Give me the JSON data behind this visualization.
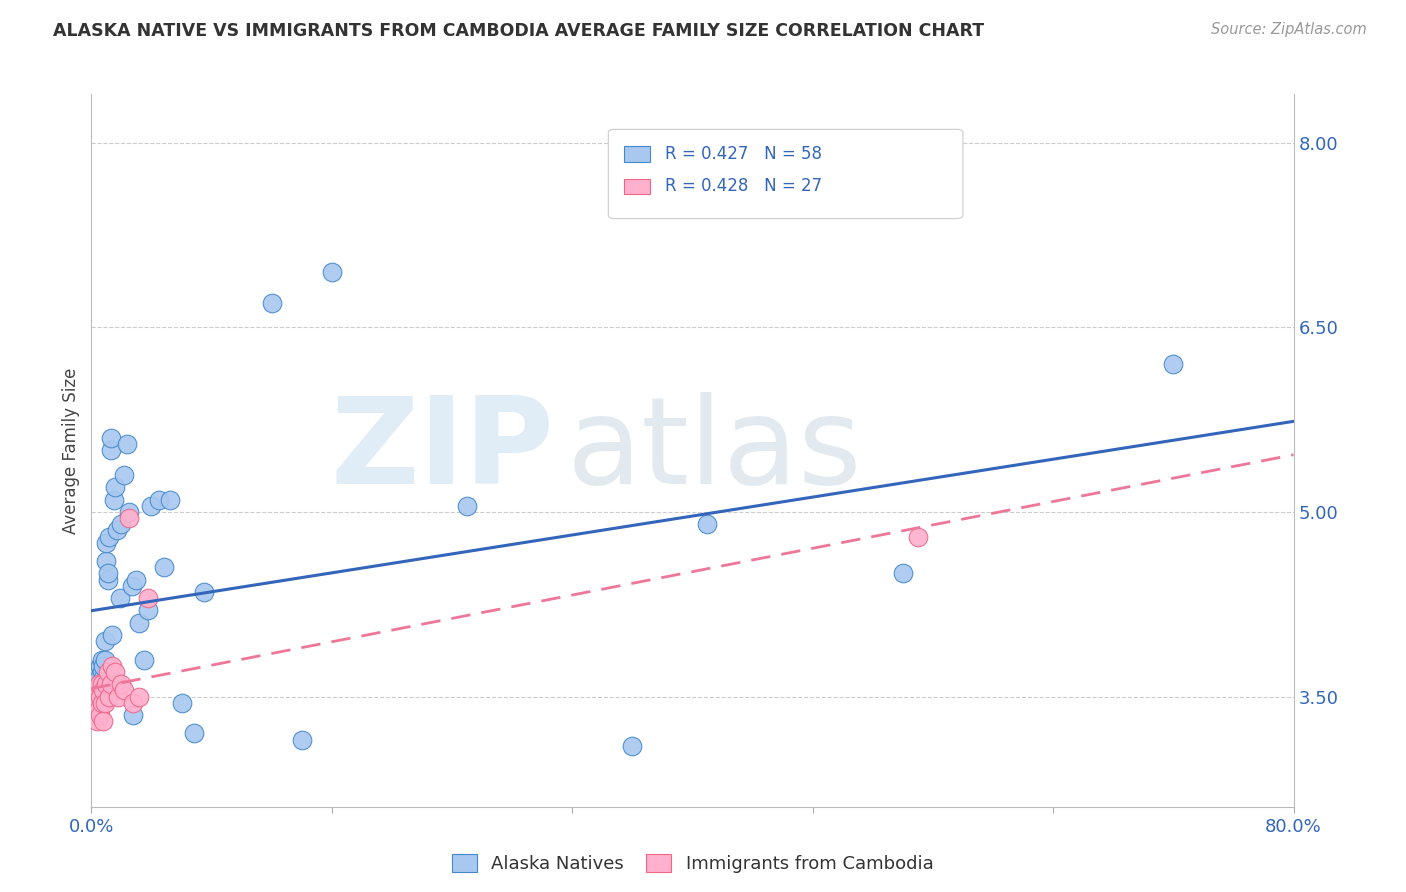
{
  "title": "ALASKA NATIVE VS IMMIGRANTS FROM CAMBODIA AVERAGE FAMILY SIZE CORRELATION CHART",
  "source": "Source: ZipAtlas.com",
  "ylabel": "Average Family Size",
  "xlim": [
    0.0,
    0.8
  ],
  "ylim": [
    2.6,
    8.4
  ],
  "yticks_right": [
    3.5,
    5.0,
    6.5,
    8.0
  ],
  "yticklabels_right": [
    "3.50",
    "5.00",
    "6.50",
    "8.00"
  ],
  "xticks": [
    0.0,
    0.16,
    0.32,
    0.48,
    0.64,
    0.8
  ],
  "xticklabels": [
    "0.0%",
    "",
    "",
    "",
    "",
    "80.0%"
  ],
  "blue_face": "#A8C8F0",
  "blue_edge": "#4488CC",
  "pink_face": "#FFB0CC",
  "pink_edge": "#EE6688",
  "blue_line": "#3366BB",
  "pink_line": "#EE7799",
  "grid_color": "#CCCCCC",
  "background": "#FFFFFF",
  "alaska_x": [
    0.002,
    0.003,
    0.003,
    0.004,
    0.004,
    0.004,
    0.005,
    0.005,
    0.005,
    0.006,
    0.006,
    0.006,
    0.007,
    0.007,
    0.007,
    0.008,
    0.008,
    0.008,
    0.009,
    0.009,
    0.01,
    0.01,
    0.011,
    0.011,
    0.012,
    0.013,
    0.013,
    0.014,
    0.015,
    0.016,
    0.017,
    0.018,
    0.019,
    0.02,
    0.022,
    0.024,
    0.025,
    0.027,
    0.028,
    0.03,
    0.032,
    0.035,
    0.038,
    0.04,
    0.045,
    0.048,
    0.052,
    0.06,
    0.068,
    0.075,
    0.12,
    0.14,
    0.16,
    0.25,
    0.36,
    0.41,
    0.54,
    0.72
  ],
  "alaska_y": [
    3.55,
    3.6,
    3.65,
    3.5,
    3.55,
    3.7,
    3.45,
    3.5,
    3.65,
    3.6,
    3.55,
    3.75,
    3.6,
    3.7,
    3.8,
    3.55,
    3.65,
    3.75,
    3.8,
    3.95,
    4.6,
    4.75,
    4.45,
    4.5,
    4.8,
    5.5,
    5.6,
    4.0,
    5.1,
    5.2,
    4.85,
    3.6,
    4.3,
    4.9,
    5.3,
    5.55,
    5.0,
    4.4,
    3.35,
    4.45,
    4.1,
    3.8,
    4.2,
    5.05,
    5.1,
    4.55,
    5.1,
    3.45,
    3.2,
    4.35,
    6.7,
    3.15,
    6.95,
    5.05,
    3.1,
    4.9,
    4.5,
    6.2
  ],
  "cambodia_x": [
    0.002,
    0.003,
    0.004,
    0.004,
    0.005,
    0.005,
    0.006,
    0.006,
    0.007,
    0.007,
    0.008,
    0.008,
    0.009,
    0.01,
    0.011,
    0.012,
    0.013,
    0.014,
    0.016,
    0.018,
    0.02,
    0.022,
    0.025,
    0.028,
    0.032,
    0.038,
    0.55
  ],
  "cambodia_y": [
    3.35,
    3.45,
    3.3,
    3.55,
    3.4,
    3.6,
    3.35,
    3.5,
    3.45,
    3.6,
    3.3,
    3.55,
    3.45,
    3.6,
    3.7,
    3.5,
    3.6,
    3.75,
    3.7,
    3.5,
    3.6,
    3.55,
    4.95,
    3.45,
    3.5,
    4.3,
    4.8
  ],
  "wm_text1": "ZIP",
  "wm_text2": "atlas"
}
